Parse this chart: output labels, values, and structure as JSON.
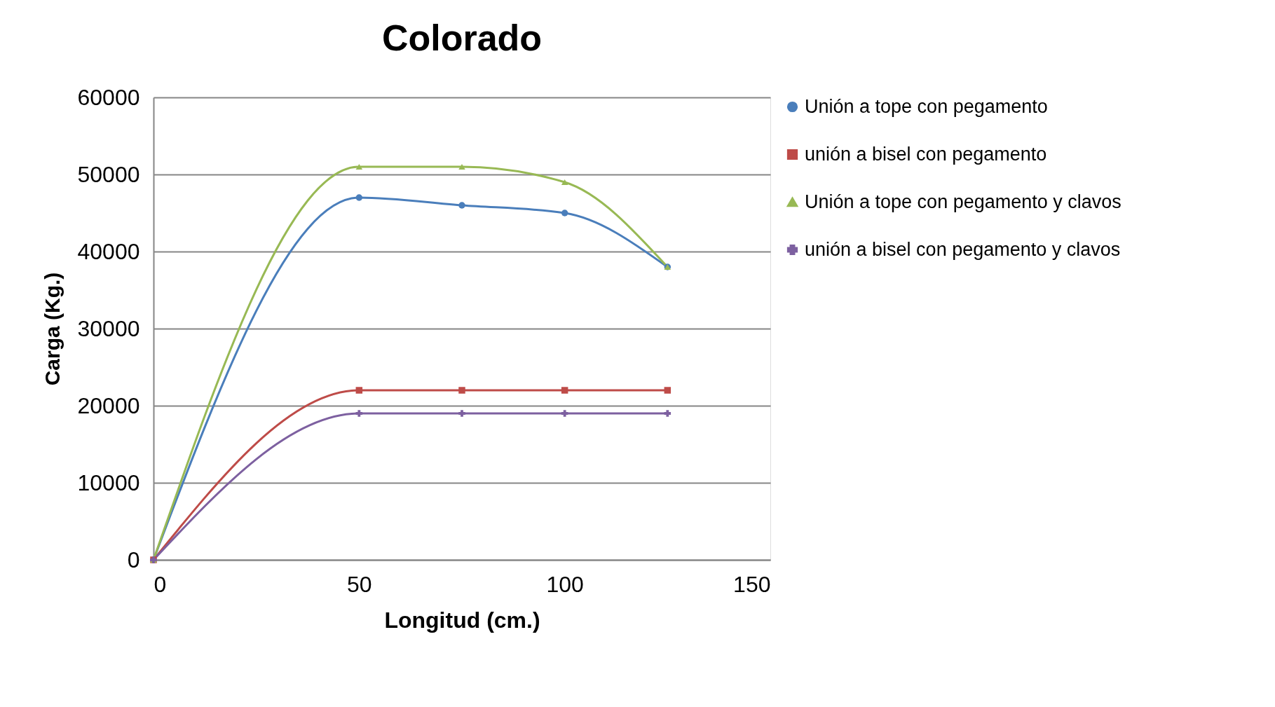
{
  "chart_data": {
    "type": "line",
    "title": "Colorado",
    "xlabel": "Longitud (cm.)",
    "ylabel": "Carga (Kg.)",
    "x": [
      0,
      50,
      75,
      100,
      125
    ],
    "series": [
      {
        "name": "Unión a tope con pegamento",
        "color": "#4a7ebb",
        "marker": "circle",
        "values": [
          0,
          47000,
          46000,
          45000,
          38000
        ]
      },
      {
        "name": "unión a bisel con pegamento",
        "color": "#be4b48",
        "marker": "square",
        "values": [
          0,
          22000,
          22000,
          22000,
          22000
        ]
      },
      {
        "name": "Unión a tope con pegamento y clavos",
        "color": "#98b954",
        "marker": "triangle",
        "values": [
          0,
          51000,
          51000,
          49000,
          38000
        ]
      },
      {
        "name": "unión a bisel con pegamento y clavos",
        "color": "#7d60a0",
        "marker": "cross",
        "values": [
          0,
          19000,
          19000,
          19000,
          19000
        ]
      }
    ],
    "xlim": [
      0,
      150
    ],
    "xticks": [
      0,
      50,
      100,
      150
    ],
    "ylim": [
      0,
      60000
    ],
    "yticks": [
      0,
      10000,
      20000,
      30000,
      40000,
      50000,
      60000
    ],
    "grid": "y",
    "legend": "right",
    "line_style": "solid"
  }
}
